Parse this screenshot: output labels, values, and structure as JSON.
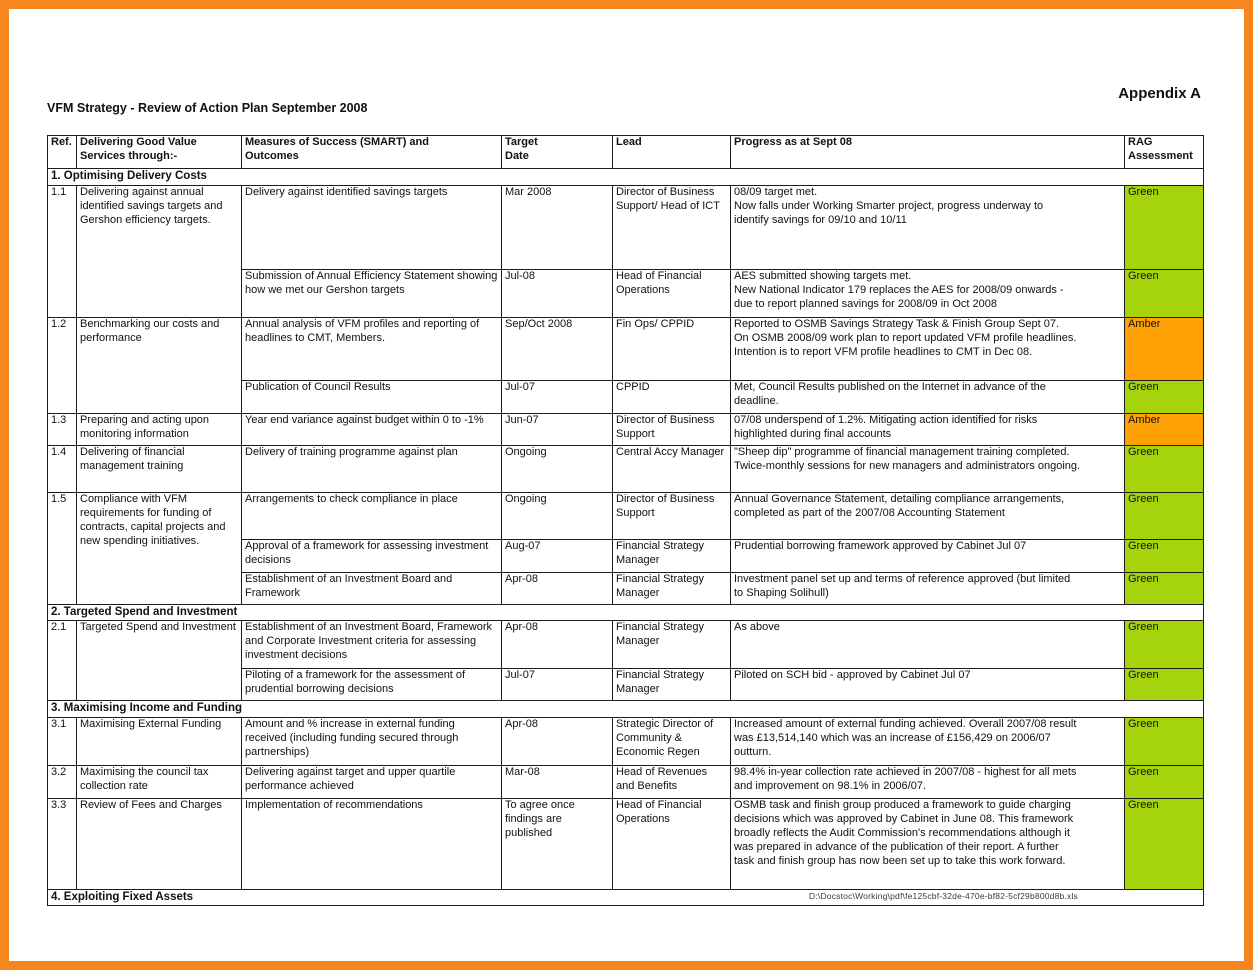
{
  "page": {
    "appendix_label": "Appendix A",
    "title": "VFM Strategy - Review of Action Plan September 2008",
    "footer_path": "D:\\Docstoc\\Working\\pdf\\fe125cbf-32de-470e-bf82-5cf29b800d8b.xls"
  },
  "colors": {
    "green": "#a6d40c",
    "amber": "#ffa005",
    "frame_orange": "#f6871f"
  },
  "table": {
    "headers": [
      "Ref.",
      "Delivering Good Value\nServices through:-",
      "Measures of Success (SMART) and\nOutcomes",
      "Target\nDate",
      "Lead",
      "Progress as at Sept 08",
      "RAG\nAssessment"
    ],
    "sections": [
      {
        "title": "1. Optimising Delivery Costs",
        "groups": [
          {
            "ref": "1.1",
            "service": "Delivering against annual identified savings targets and Gershon efficiency targets.",
            "measures": [
              {
                "measure": "Delivery against identified savings targets",
                "target": "Mar 2008",
                "lead": "Director of Business Support/ Head of ICT",
                "progress": "08/09 target met.\nNow falls under Working Smarter project, progress underway to\nidentify savings for 09/10 and 10/11",
                "rag": "Green"
              },
              {
                "measure": "Submission of Annual Efficiency Statement showing how we met our Gershon targets",
                "target": "Jul-08",
                "lead": "Head of Financial Operations",
                "progress": "AES submitted showing targets met.\nNew National Indicator 179 replaces the AES for 2008/09 onwards -\ndue to report planned savings for 2008/09 in Oct 2008",
                "rag": "Green"
              }
            ]
          },
          {
            "ref": "1.2",
            "service": "Benchmarking our costs and performance",
            "measures": [
              {
                "measure": "Annual analysis of VFM profiles and reporting of headlines to CMT, Members.",
                "target": "Sep/Oct 2008",
                "lead": "Fin Ops/ CPPID",
                "progress": "Reported to OSMB Savings Strategy Task & Finish Group Sept 07.\nOn OSMB 2008/09 work plan to report updated VFM profile headlines.\nIntention is to report VFM profile headlines to CMT in Dec 08.",
                "rag": "Amber"
              },
              {
                "measure": "Publication of Council Results",
                "target": "Jul-07",
                "lead": "CPPID",
                "progress": "Met, Council Results published on the Internet in advance of the\ndeadline.",
                "rag": "Green"
              }
            ]
          },
          {
            "ref": "1.3",
            "service": "Preparing and acting upon monitoring information",
            "measures": [
              {
                "measure": "Year end variance against budget within 0 to -1%",
                "target": "Jun-07",
                "lead": "Director of Business Support",
                "progress": "07/08 underspend of 1.2%. Mitigating action identified for risks\nhighlighted during final accounts",
                "rag": "Amber"
              }
            ]
          },
          {
            "ref": "1.4",
            "service": "Delivering of financial management training",
            "measures": [
              {
                "measure": "Delivery of training programme against plan",
                "target": "Ongoing",
                "lead": "Central Accy Manager",
                "progress": "\"Sheep dip\" programme of financial management training completed.\nTwice-monthly sessions for new managers and administrators ongoing.",
                "rag": "Green"
              }
            ]
          },
          {
            "ref": "1.5",
            "service": "Compliance with VFM requirements for funding of contracts, capital projects and new spending initiatives.",
            "measures": [
              {
                "measure": "Arrangements to check compliance in place",
                "target": "Ongoing",
                "lead": "Director of Business Support",
                "progress": "Annual Governance Statement, detailing compliance arrangements,\ncompleted as part of the 2007/08 Accounting Statement",
                "rag": "Green"
              },
              {
                "measure": "Approval of a framework for assessing investment decisions",
                "target": "Aug-07",
                "lead": "Financial Strategy Manager",
                "progress": "Prudential borrowing framework approved by Cabinet Jul 07",
                "rag": "Green"
              },
              {
                "measure": "Establishment of an Investment Board and Framework",
                "target": "Apr-08",
                "lead": "Financial Strategy Manager",
                "progress": "Investment panel set up and terms of reference approved (but limited\nto Shaping Solihull)",
                "rag": "Green"
              }
            ]
          }
        ]
      },
      {
        "title": "2. Targeted Spend and Investment",
        "groups": [
          {
            "ref": "2.1",
            "service": "Targeted Spend and Investment",
            "measures": [
              {
                "measure": "Establishment of an Investment Board, Framework and Corporate Investment criteria for assessing investment decisions",
                "target": "Apr-08",
                "lead": "Financial Strategy Manager",
                "progress": "As above",
                "rag": "Green"
              },
              {
                "measure": "Piloting of a framework for the assessment of prudential borrowing decisions",
                "target": "Jul-07",
                "lead": "Financial Strategy Manager",
                "progress": "Piloted on SCH bid - approved by Cabinet Jul 07",
                "rag": "Green"
              }
            ]
          }
        ]
      },
      {
        "title": "3. Maximising Income and Funding",
        "groups": [
          {
            "ref": "3.1",
            "service": "Maximising External Funding",
            "measures": [
              {
                "measure": "Amount and % increase in external funding received (including funding secured through partnerships)",
                "target": "Apr-08",
                "lead": "Strategic Director of Community & Economic Regen",
                "progress": "Increased amount of external funding achieved. Overall 2007/08 result\nwas £13,514,140 which was an increase of £156,429 on 2006/07\noutturn.",
                "rag": "Green"
              }
            ]
          },
          {
            "ref": "3.2",
            "service": "Maximising the council tax collection rate",
            "measures": [
              {
                "measure": "Delivering against target and upper quartile performance achieved",
                "target": "Mar-08",
                "lead": "Head of Revenues and Benefits",
                "progress": "98.4% in-year collection rate achieved in 2007/08 - highest for all mets\nand improvement on 98.1% in 2006/07.",
                "rag": "Green"
              }
            ]
          },
          {
            "ref": "3.3",
            "service": "Review of Fees and Charges",
            "measures": [
              {
                "measure": "Implementation of recommendations",
                "target": "To agree once findings are published",
                "lead": "Head of Financial Operations",
                "progress": "OSMB task and finish group produced a framework to guide charging\ndecisions which was approved by Cabinet in June 08. This framework\nbroadly reflects the Audit Commission's recommendations although it\nwas prepared in advance of the publication of their report. A further\ntask and finish group has now been set up to take this work forward.",
                "rag": "Green"
              }
            ]
          }
        ]
      },
      {
        "title": "4. Exploiting Fixed Assets",
        "groups": []
      }
    ]
  }
}
